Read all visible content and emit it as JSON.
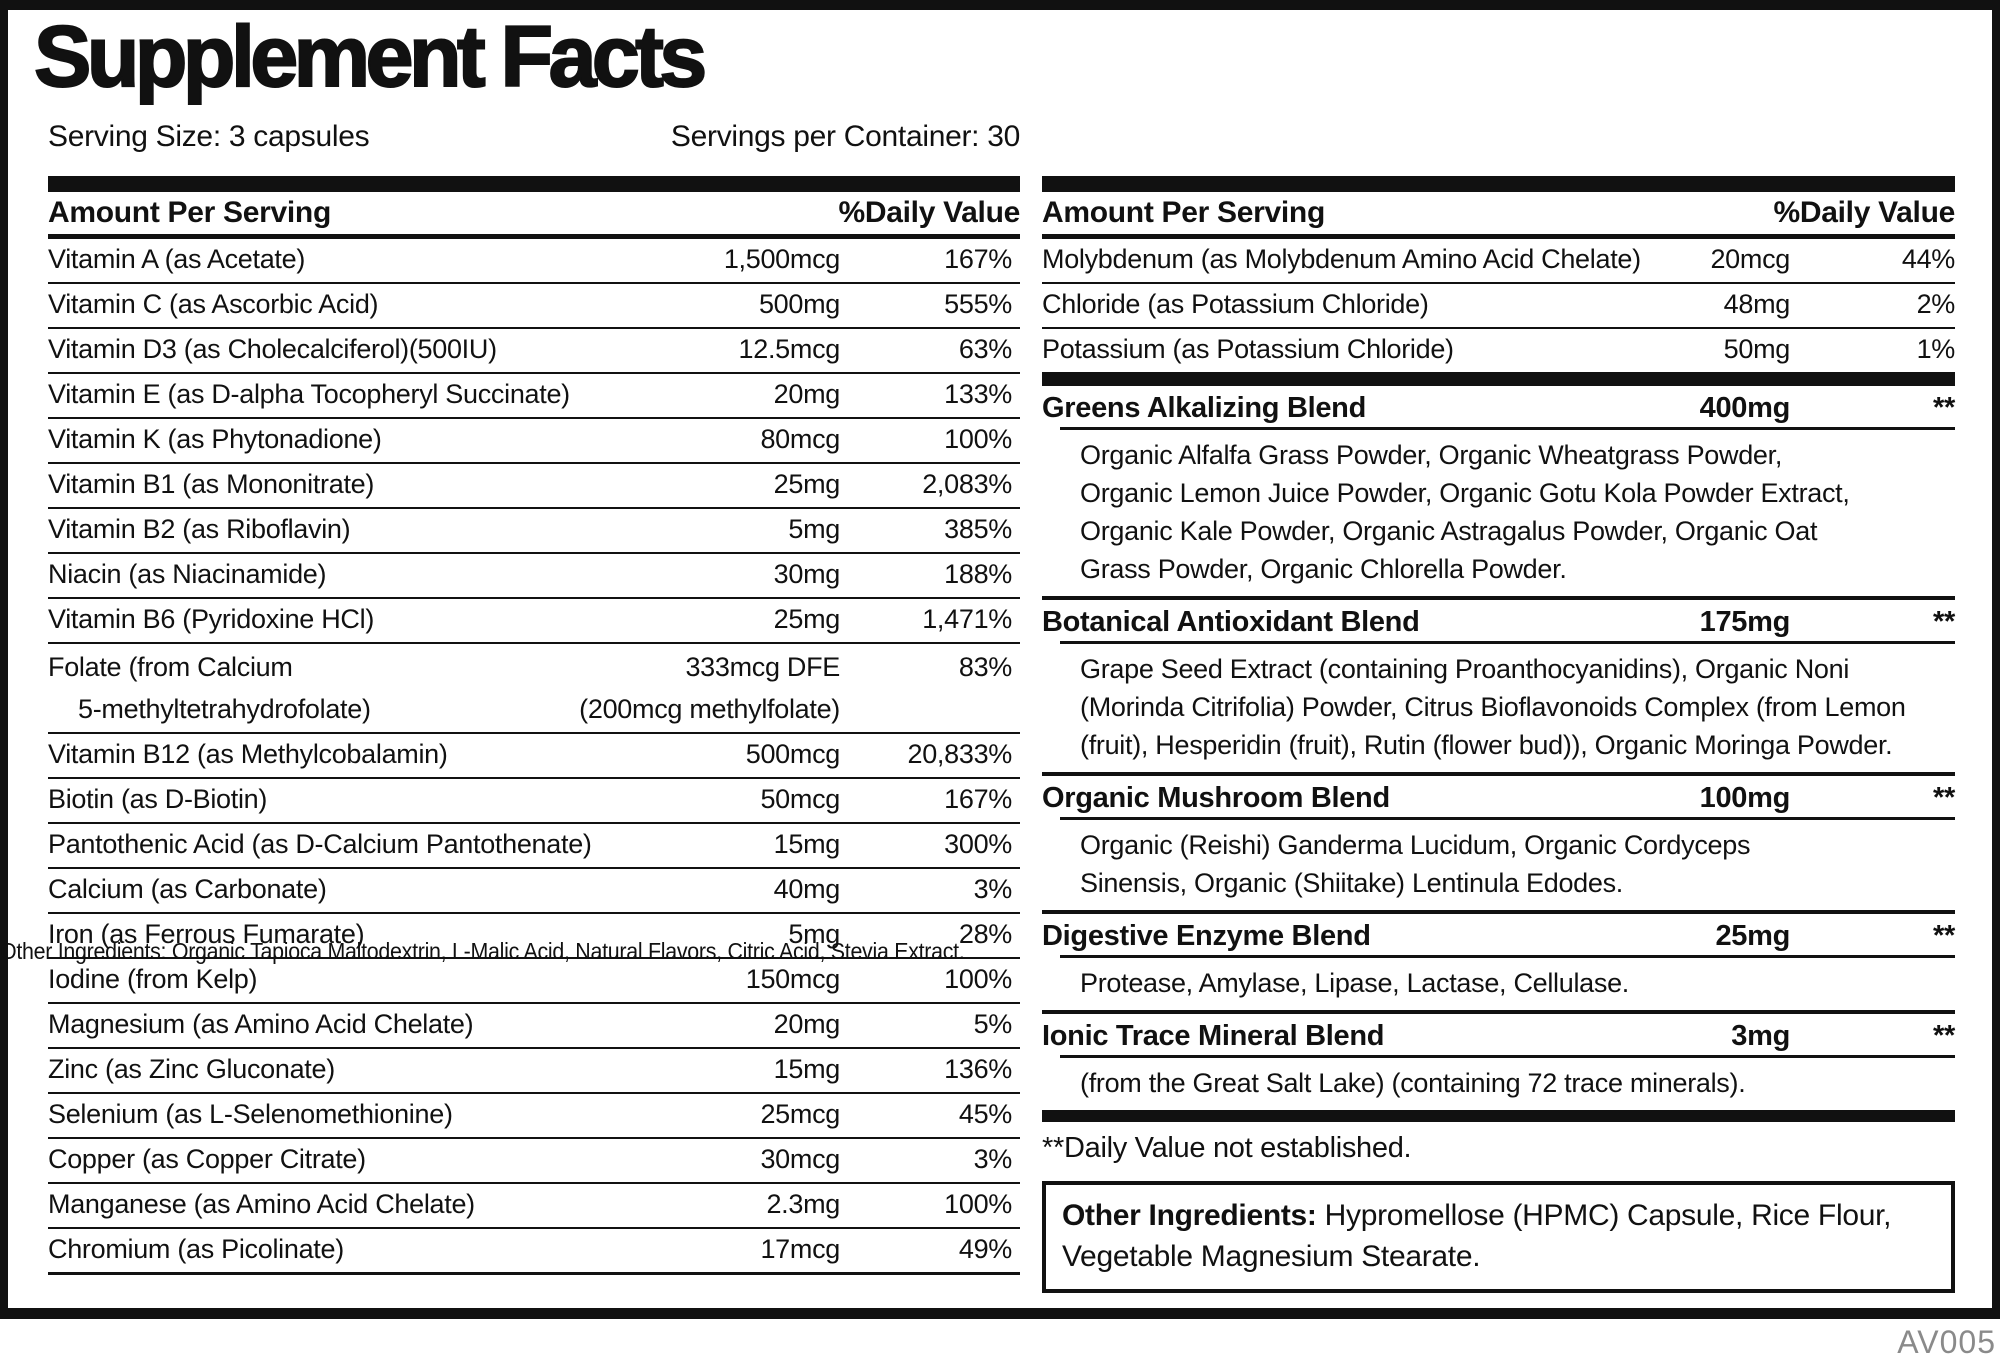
{
  "title": "Supplement Facts",
  "serving": {
    "size_label": "Serving Size: 3 capsules",
    "container_label": "Servings per Container: 30"
  },
  "left_table": {
    "amount_header": "Amount Per Serving",
    "dv_header": "%Daily Value",
    "rows": [
      {
        "name": "Vitamin A (as Acetate)",
        "amount": "1,500mcg",
        "dv": "167%"
      },
      {
        "name": "Vitamin C (as Ascorbic Acid)",
        "amount": "500mg",
        "dv": "555%"
      },
      {
        "name": "Vitamin D3 (as Cholecalciferol)(500IU)",
        "amount": "12.5mcg",
        "dv": "63%"
      },
      {
        "name": "Vitamin E (as D-alpha Tocopheryl Succinate)",
        "amount": "20mg",
        "dv": "133%"
      },
      {
        "name": "Vitamin K (as Phytonadione)",
        "amount": "80mcg",
        "dv": "100%"
      },
      {
        "name": "Vitamin B1 (as Mononitrate)",
        "amount": "25mg",
        "dv": "2,083%"
      },
      {
        "name": "Vitamin B2 (as Riboflavin)",
        "amount": "5mg",
        "dv": "385%"
      },
      {
        "name": "Niacin (as Niacinamide)",
        "amount": "30mg",
        "dv": "188%"
      },
      {
        "name": "Vitamin B6 (Pyridoxine HCl)",
        "amount": "25mg",
        "dv": "1,471%"
      },
      {
        "name": "Folate (from Calcium",
        "name2": "5-methyltetrahydrofolate)",
        "amount": "333mcg DFE",
        "amount2": "(200mcg methylfolate)",
        "dv": "83%"
      },
      {
        "name": "Vitamin B12 (as Methylcobalamin)",
        "amount": "500mcg",
        "dv": "20,833%"
      },
      {
        "name": "Biotin (as D-Biotin)",
        "amount": "50mcg",
        "dv": "167%"
      },
      {
        "name": "Pantothenic Acid (as D-Calcium Pantothenate)",
        "amount": "15mg",
        "dv": "300%"
      },
      {
        "name": "Calcium (as Carbonate)",
        "amount": "40mg",
        "dv": "3%"
      },
      {
        "name": "Iron (as Ferrous Fumarate)",
        "amount": "5mg",
        "dv": "28%"
      },
      {
        "name": "Iodine (from Kelp)",
        "amount": "150mcg",
        "dv": "100%"
      },
      {
        "name": "Magnesium (as Amino Acid Chelate)",
        "amount": "20mg",
        "dv": "5%"
      },
      {
        "name": "Zinc (as Zinc Gluconate)",
        "amount": "15mg",
        "dv": "136%"
      },
      {
        "name": "Selenium (as L-Selenomethionine)",
        "amount": "25mcg",
        "dv": "45%"
      },
      {
        "name": "Copper (as Copper Citrate)",
        "amount": "30mcg",
        "dv": "3%"
      },
      {
        "name": "Manganese (as Amino Acid Chelate)",
        "amount": "2.3mg",
        "dv": "100%"
      },
      {
        "name": "Chromium (as Picolinate)",
        "amount": "17mcg",
        "dv": "49%"
      }
    ]
  },
  "right_table": {
    "amount_header": "Amount Per Serving",
    "dv_header": "%Daily Value",
    "rows": [
      {
        "name": "Molybdenum (as Molybdenum Amino Acid Chelate)",
        "amount": "20mcg",
        "dv": "44%"
      },
      {
        "name": "Chloride (as Potassium Chloride)",
        "amount": "48mg",
        "dv": "2%"
      },
      {
        "name": "Potassium (as Potassium Chloride)",
        "amount": "50mg",
        "dv": "1%"
      }
    ],
    "blends": [
      {
        "name": "Greens Alkalizing Blend",
        "amount": "400mg",
        "dv": "**",
        "desc_lines": [
          "Organic Alfalfa Grass Powder, Organic Wheatgrass Powder,",
          "Organic Lemon Juice Powder, Organic Gotu Kola Powder Extract,",
          "Organic Kale Powder, Organic Astragalus Powder, Organic Oat",
          "Grass Powder, Organic Chlorella Powder."
        ]
      },
      {
        "name": "Botanical Antioxidant Blend",
        "amount": "175mg",
        "dv": "**",
        "desc_lines": [
          "Grape Seed Extract (containing Proanthocyanidins), Organic Noni",
          "(Morinda Citrifolia) Powder, Citrus Bioflavonoids Complex (from Lemon",
          "(fruit), Hesperidin (fruit), Rutin (flower bud)), Organic Moringa Powder."
        ]
      },
      {
        "name": "Organic Mushroom Blend",
        "amount": "100mg",
        "dv": "**",
        "desc_lines": [
          "Organic (Reishi) Ganderma Lucidum, Organic Cordyceps",
          "Sinensis, Organic (Shiitake) Lentinula Edodes."
        ]
      },
      {
        "name": "Digestive Enzyme Blend",
        "amount": "25mg",
        "dv": "**",
        "desc_lines": [
          "Protease, Amylase, Lipase, Lactase, Cellulase."
        ]
      },
      {
        "name": "Ionic Trace Mineral Blend",
        "amount": "3mg",
        "dv": "**",
        "desc_lines": [
          "(from the Great Salt Lake) (containing 72 trace minerals)."
        ]
      }
    ],
    "footnote": "**Daily Value not established."
  },
  "other_ingredients": {
    "label": "Other Ingredients:",
    "text": " Hypromellose (HPMC) Capsule, Rice Flour, Vegetable Magnesium Stearate."
  },
  "overlay_text": "Other Ingredients: Organic Tapioca Maltodextrin, L-Malic Acid, Natural Flavors, Citric Acid, Stevia Extract.",
  "footer_code": "AV005",
  "colors": {
    "ink": "#111111",
    "code_gray": "#8a8a8a"
  }
}
